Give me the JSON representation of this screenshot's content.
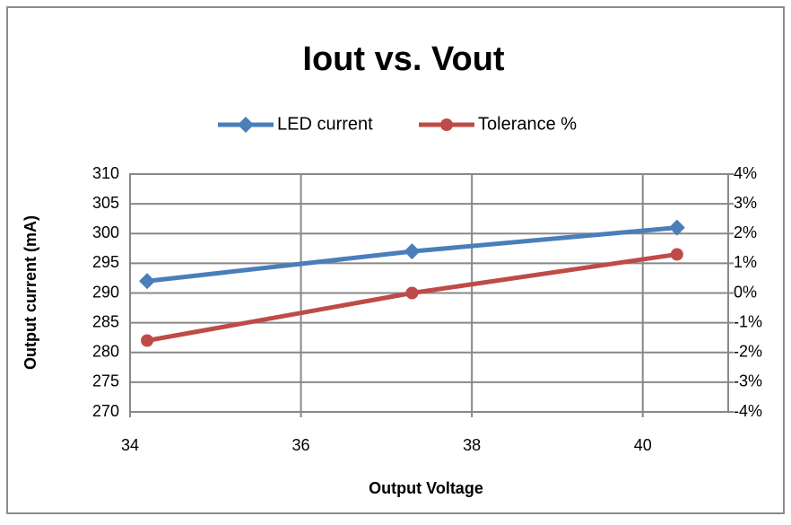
{
  "chart_data": {
    "type": "line",
    "title": "Iout vs. Vout",
    "x_label": "Output Voltage",
    "y_label": "Output current (mA)",
    "x": [
      34.2,
      37.3,
      40.4
    ],
    "series": [
      {
        "name": "LED current",
        "color": "#4a7ebb",
        "marker": "diamond",
        "values": [
          292,
          297,
          301
        ]
      },
      {
        "name": "Tolerance %",
        "color": "#be4b48",
        "marker": "circle",
        "axis": "y2",
        "values": [
          -1.6,
          0,
          1.3
        ]
      }
    ],
    "xlim": [
      34,
      41
    ],
    "xticks": [
      34,
      36,
      38,
      40
    ],
    "ylim": [
      270,
      310
    ],
    "yticks": [
      270,
      275,
      280,
      285,
      290,
      295,
      300,
      305,
      310
    ],
    "y2lim": [
      -4,
      4
    ],
    "y2ticks": [
      {
        "value": -4,
        "label": "-4%"
      },
      {
        "value": -3,
        "label": "-3%"
      },
      {
        "value": -2,
        "label": "-2%"
      },
      {
        "value": -1,
        "label": "-1%"
      },
      {
        "value": 0,
        "label": "0%"
      },
      {
        "value": 1,
        "label": "1%"
      },
      {
        "value": 2,
        "label": "2%"
      },
      {
        "value": 3,
        "label": "3%"
      },
      {
        "value": 4,
        "label": "4%"
      }
    ],
    "grid": true,
    "legend": "top"
  }
}
